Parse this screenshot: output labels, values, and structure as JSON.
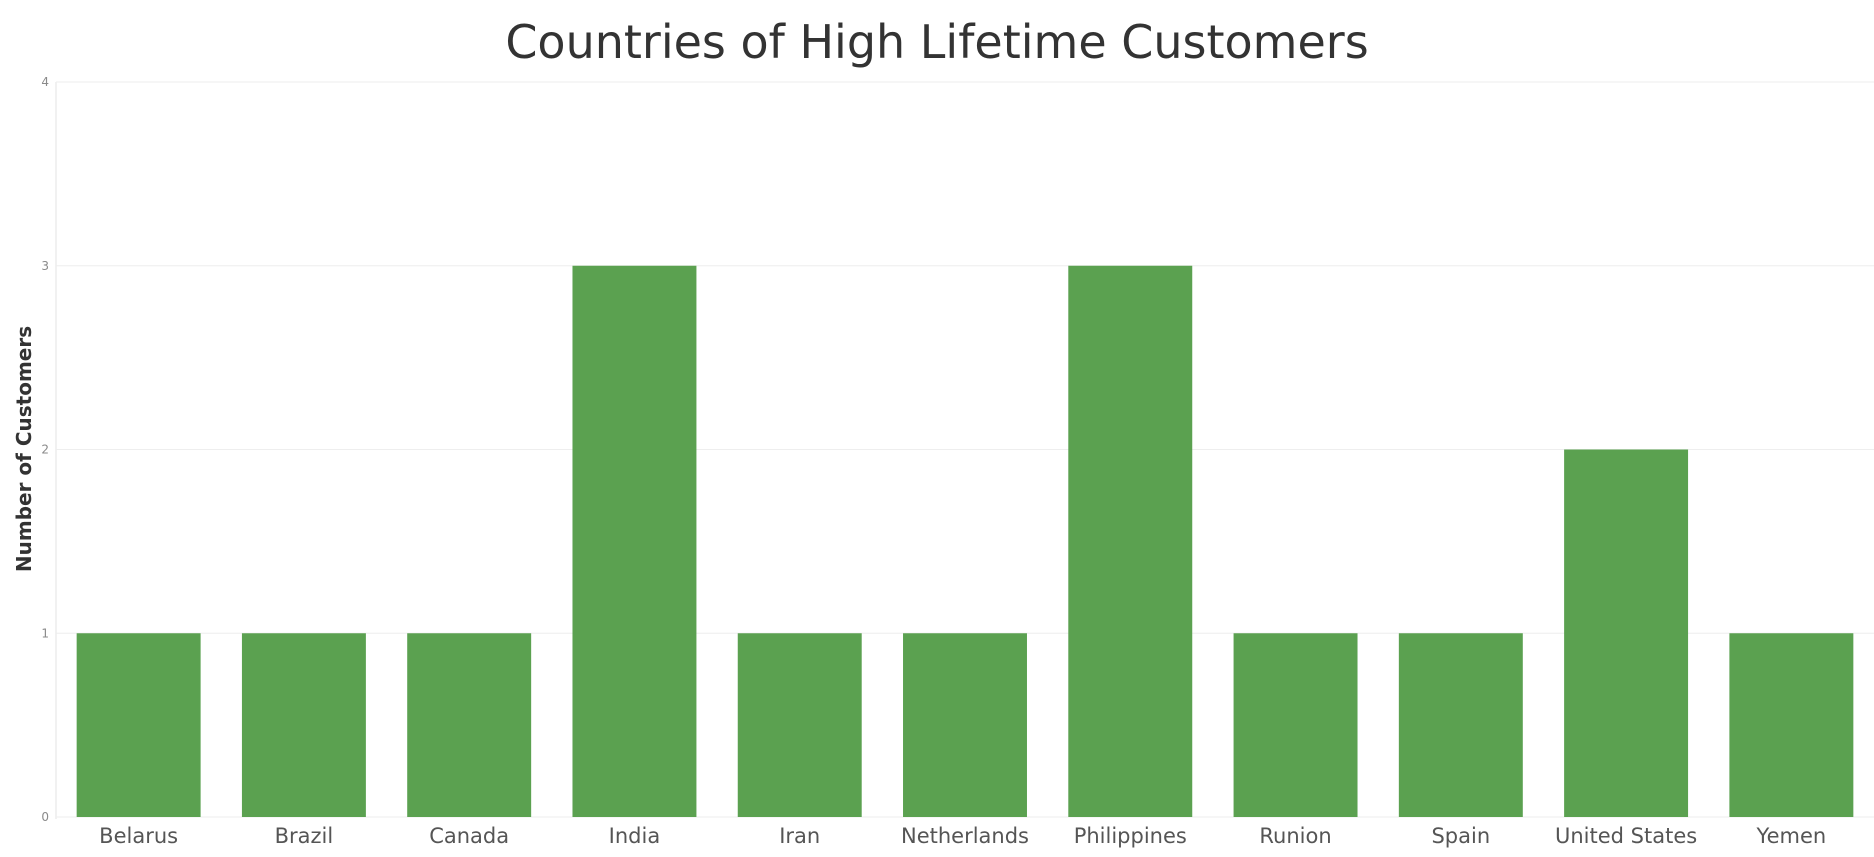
{
  "chart_data": {
    "type": "bar",
    "title": "Countries of High Lifetime Customers",
    "xlabel": "",
    "ylabel": "Number of Customers",
    "categories": [
      "Belarus",
      "Brazil",
      "Canada",
      "India",
      "Iran",
      "Netherlands",
      "Philippines",
      "Runion",
      "Spain",
      "United States",
      "Yemen"
    ],
    "values": [
      1,
      1,
      1,
      3,
      1,
      1,
      3,
      1,
      1,
      2,
      1
    ],
    "ylim": [
      0,
      4
    ],
    "yticks": [
      "0",
      "1",
      "2",
      "3",
      "4"
    ],
    "grid": true,
    "bar_color": "#5ba150"
  }
}
